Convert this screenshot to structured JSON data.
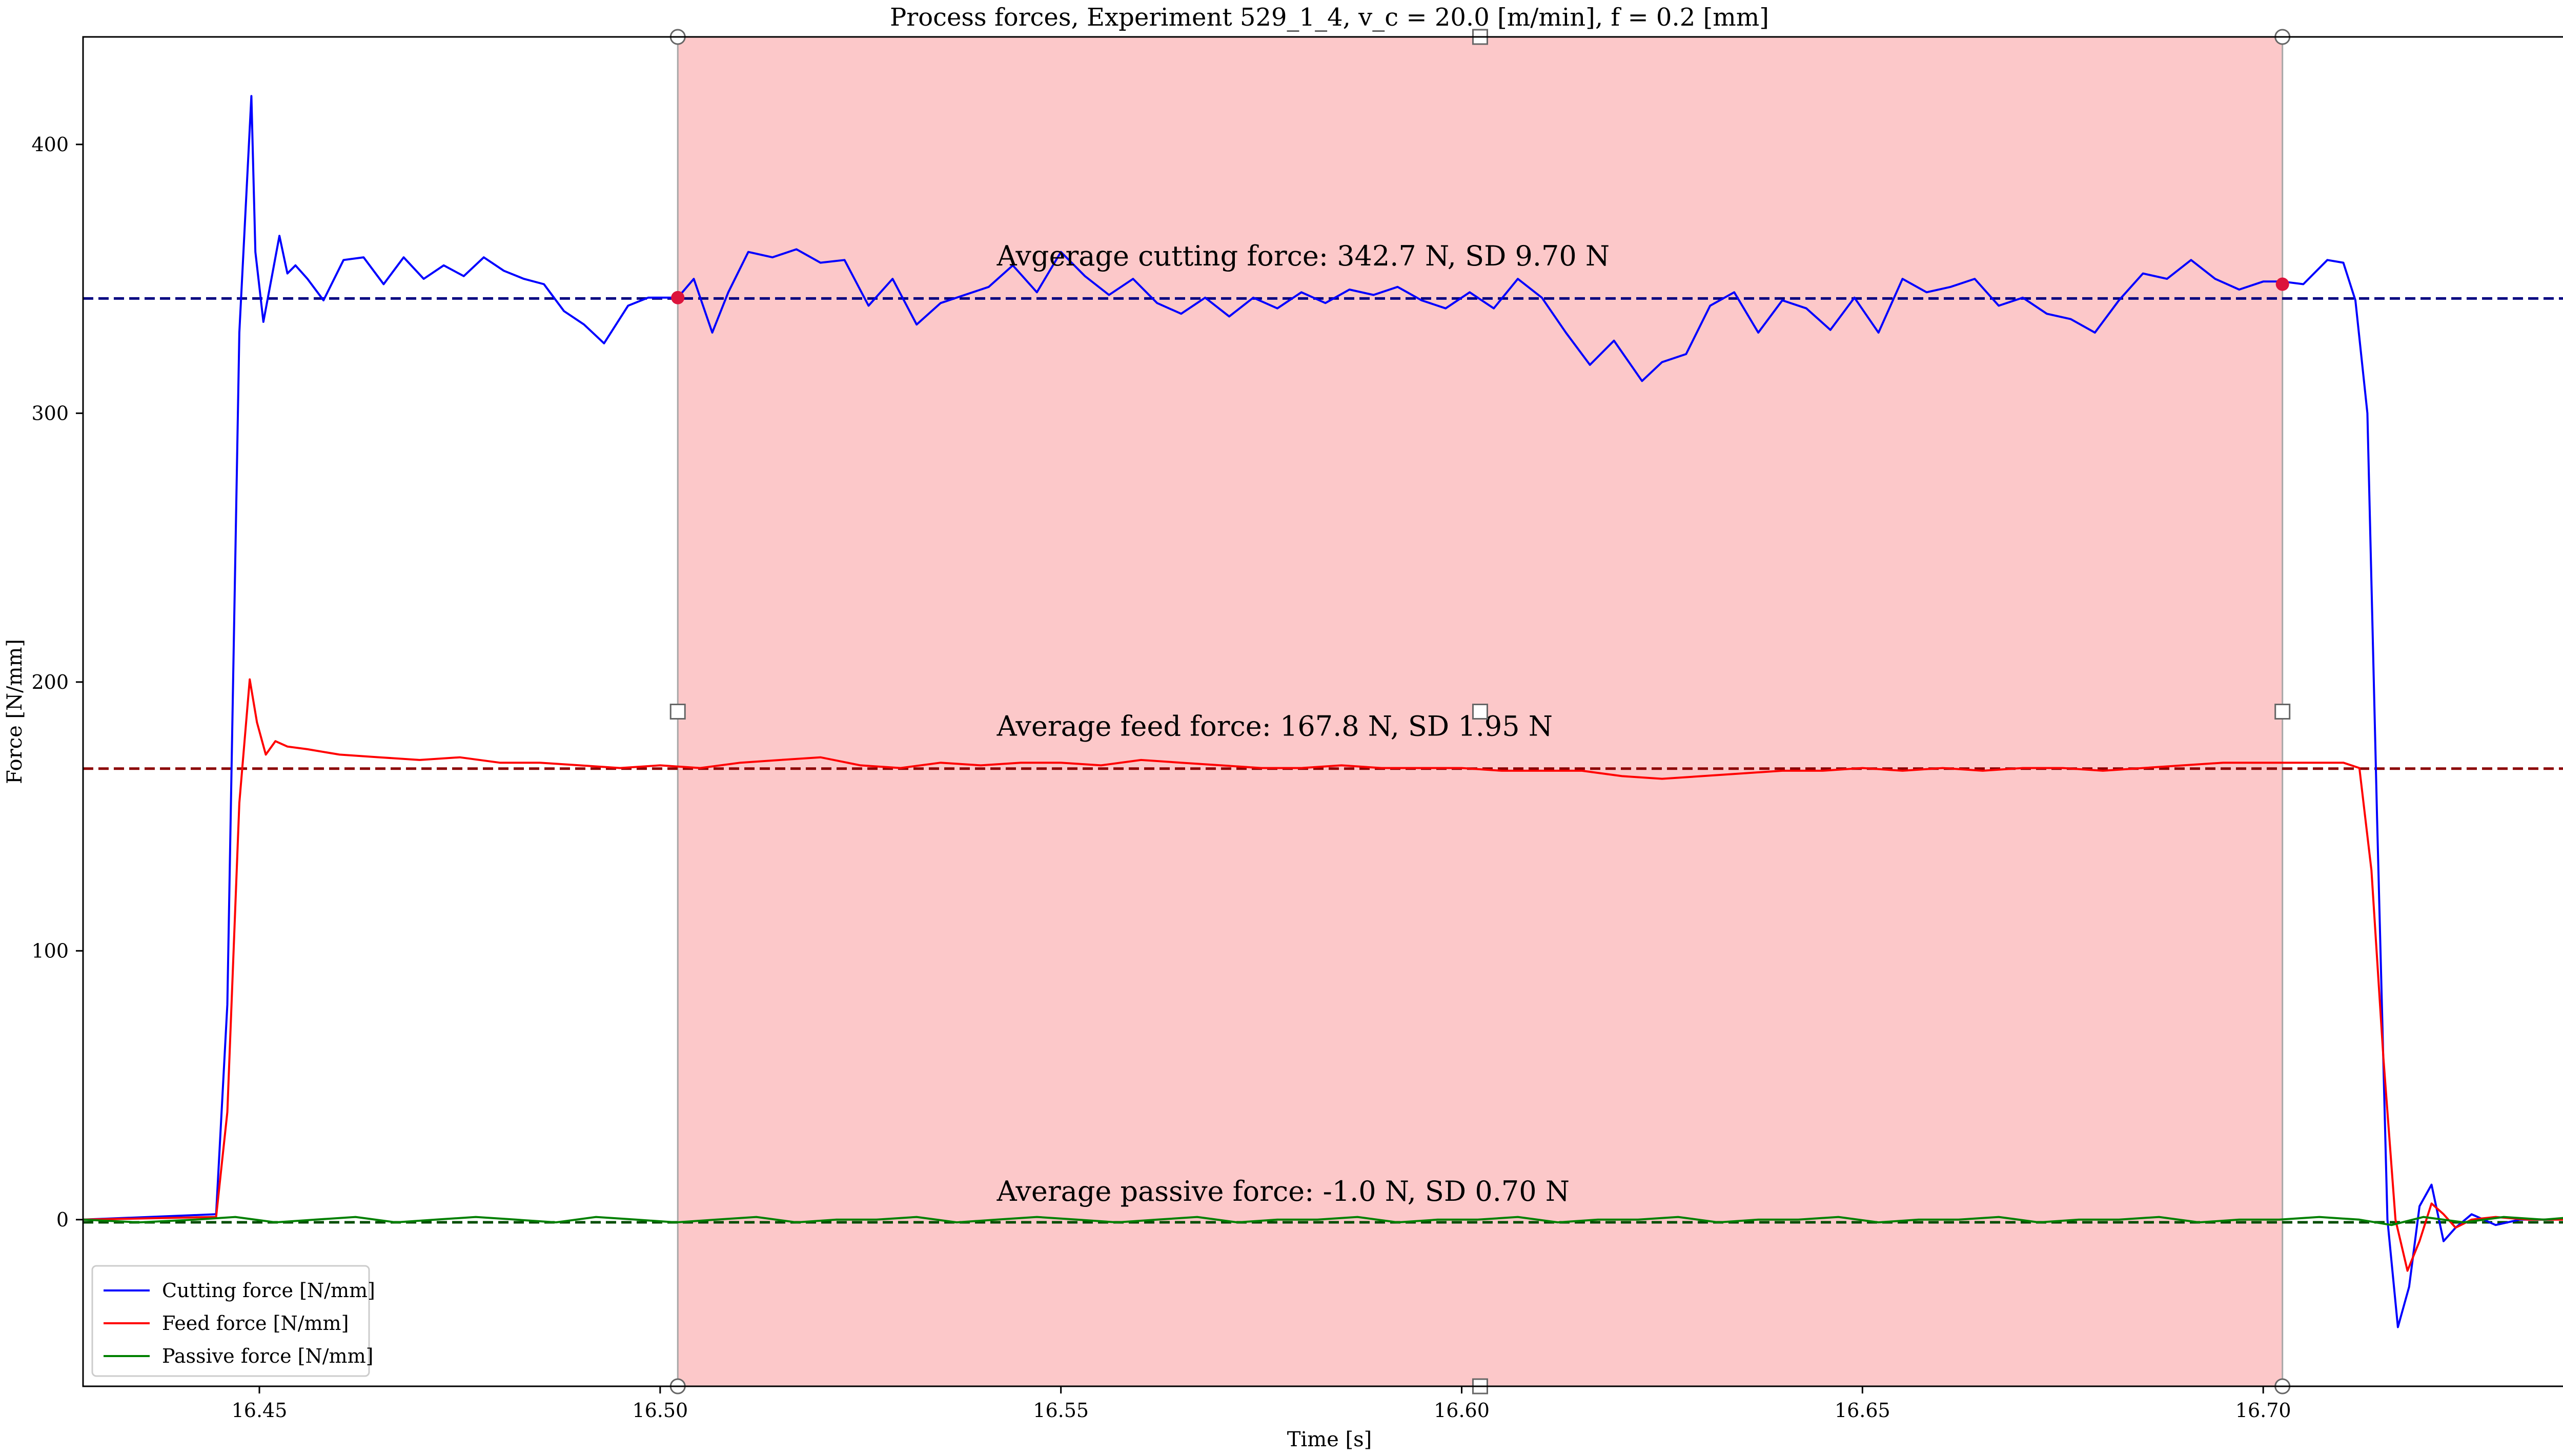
{
  "chart_data": {
    "type": "line",
    "title": "Process forces, Experiment 529_1_4, v_c = 20.0 [m/min], f = 0.2 [mm]",
    "xlabel": "Time [s]",
    "ylabel": "Force [N/mm]",
    "xlim": [
      16.428,
      16.739
    ],
    "ylim": [
      -62,
      440
    ],
    "x_ticks": [
      16.45,
      16.5,
      16.55,
      16.6,
      16.65,
      16.7
    ],
    "x_tick_labels": [
      "16.45",
      "16.50",
      "16.55",
      "16.60",
      "16.65",
      "16.70"
    ],
    "y_ticks": [
      0,
      100,
      200,
      300,
      400
    ],
    "y_tick_labels": [
      "0",
      "100",
      "200",
      "300",
      "400"
    ],
    "grid": false,
    "legend_position": "bottom-left",
    "highlight_span": {
      "x_start": 16.5022,
      "x_end": 16.7024,
      "color": "#fcc8c9"
    },
    "series": [
      {
        "name": "Cutting force [N/mm]",
        "color": "#0000ff",
        "average": 342.7,
        "average_line_color": "#000080",
        "x": [
          16.428,
          16.4446,
          16.446,
          16.4475,
          16.449,
          16.4495,
          16.4505,
          16.4515,
          16.4525,
          16.4535,
          16.4545,
          16.456,
          16.458,
          16.4605,
          16.463,
          16.4655,
          16.468,
          16.4705,
          16.473,
          16.4755,
          16.478,
          16.4805,
          16.483,
          16.4855,
          16.488,
          16.4905,
          16.493,
          16.496,
          16.4985,
          16.5005,
          16.5022,
          16.5042,
          16.5065,
          16.5085,
          16.511,
          16.514,
          16.517,
          16.52,
          16.523,
          16.526,
          16.529,
          16.532,
          16.535,
          16.538,
          16.541,
          16.544,
          16.547,
          16.55,
          16.553,
          16.556,
          16.559,
          16.562,
          16.565,
          16.568,
          16.571,
          16.574,
          16.577,
          16.58,
          16.583,
          16.586,
          16.589,
          16.592,
          16.595,
          16.598,
          16.601,
          16.604,
          16.607,
          16.61,
          16.613,
          16.616,
          16.619,
          16.6225,
          16.625,
          16.628,
          16.631,
          16.634,
          16.637,
          16.64,
          16.643,
          16.646,
          16.649,
          16.652,
          16.655,
          16.658,
          16.661,
          16.664,
          16.667,
          16.67,
          16.673,
          16.676,
          16.679,
          16.682,
          16.685,
          16.688,
          16.691,
          16.694,
          16.697,
          16.7,
          16.7024,
          16.705,
          16.708,
          16.71,
          16.7115,
          16.713,
          16.7142,
          16.7155,
          16.7168,
          16.7182,
          16.7195,
          16.721,
          16.7225,
          16.724,
          16.726,
          16.729,
          16.732,
          16.736,
          16.739
        ],
        "y": [
          0,
          2,
          80,
          330,
          418,
          360,
          334,
          350,
          366,
          352,
          355,
          350,
          342,
          357,
          358,
          348,
          358,
          350,
          355,
          351,
          358,
          353,
          350,
          348,
          338,
          333,
          326,
          340,
          343,
          343,
          343,
          350,
          330,
          345,
          360,
          358,
          361,
          356,
          357,
          340,
          350,
          333,
          341,
          344,
          347,
          355,
          345,
          360,
          351,
          344,
          350,
          341,
          337,
          343,
          336,
          343,
          339,
          345,
          341,
          346,
          344,
          347,
          342,
          339,
          345,
          339,
          350,
          343,
          330,
          318,
          327,
          312,
          319,
          322,
          340,
          345,
          330,
          342,
          339,
          331,
          343,
          330,
          350,
          345,
          347,
          350,
          340,
          343,
          337,
          335,
          330,
          342,
          352,
          350,
          357,
          350,
          346,
          349,
          349,
          348,
          357,
          356,
          342,
          300,
          150,
          0,
          -40,
          -25,
          5,
          13,
          -8,
          -3,
          2,
          -2,
          0,
          0,
          1
        ],
        "label": "Avgerage cutting force: 342.7 N, SD 9.70 N",
        "label_x": 16.542,
        "label_y": 355
      },
      {
        "name": "Feed force [N/mm]",
        "color": "#ff0000",
        "average": 167.8,
        "average_line_color": "#8b0000",
        "x": [
          16.428,
          16.4446,
          16.446,
          16.4475,
          16.4488,
          16.4497,
          16.4508,
          16.452,
          16.4535,
          16.456,
          16.46,
          16.465,
          16.47,
          16.475,
          16.48,
          16.485,
          16.49,
          16.495,
          16.5,
          16.505,
          16.51,
          16.515,
          16.52,
          16.525,
          16.53,
          16.535,
          16.54,
          16.545,
          16.55,
          16.555,
          16.56,
          16.565,
          16.57,
          16.575,
          16.58,
          16.585,
          16.59,
          16.595,
          16.6,
          16.605,
          16.61,
          16.615,
          16.62,
          16.625,
          16.63,
          16.635,
          16.64,
          16.645,
          16.65,
          16.655,
          16.66,
          16.665,
          16.67,
          16.675,
          16.68,
          16.685,
          16.69,
          16.695,
          16.7,
          16.705,
          16.71,
          16.712,
          16.7135,
          16.715,
          16.7165,
          16.718,
          16.7195,
          16.721,
          16.7225,
          16.724,
          16.726,
          16.729,
          16.733,
          16.739
        ],
        "y": [
          0,
          1,
          40,
          155,
          201,
          185,
          173,
          178,
          176,
          175,
          173,
          172,
          171,
          172,
          170,
          170,
          169,
          168,
          169,
          168,
          170,
          171,
          172,
          169,
          168,
          170,
          169,
          170,
          170,
          169,
          171,
          170,
          169,
          168,
          168,
          169,
          168,
          168,
          168,
          167,
          167,
          167,
          165,
          164,
          165,
          166,
          167,
          167,
          168,
          167,
          168,
          167,
          168,
          168,
          167,
          168,
          169,
          170,
          170,
          170,
          170,
          168,
          130,
          60,
          0,
          -19,
          -8,
          6,
          2,
          -3,
          0,
          1,
          0,
          0
        ],
        "label": "Average feed force: 167.8 N, SD 1.95 N",
        "label_x": 16.542,
        "label_y": 180
      },
      {
        "name": "Passive force [N/mm]",
        "color": "#008000",
        "average": -1.0,
        "average_line_color": "#004d00",
        "x": [
          16.428,
          16.435,
          16.442,
          16.447,
          16.452,
          16.457,
          16.462,
          16.467,
          16.472,
          16.477,
          16.482,
          16.487,
          16.492,
          16.497,
          16.502,
          16.507,
          16.512,
          16.517,
          16.522,
          16.527,
          16.532,
          16.537,
          16.542,
          16.547,
          16.552,
          16.557,
          16.562,
          16.567,
          16.572,
          16.577,
          16.582,
          16.587,
          16.592,
          16.597,
          16.602,
          16.607,
          16.612,
          16.617,
          16.622,
          16.627,
          16.632,
          16.637,
          16.642,
          16.647,
          16.652,
          16.657,
          16.662,
          16.667,
          16.672,
          16.677,
          16.682,
          16.687,
          16.692,
          16.697,
          16.702,
          16.707,
          16.712,
          16.716,
          16.72,
          16.725,
          16.73,
          16.735,
          16.739
        ],
        "y": [
          0,
          -1,
          0,
          1,
          -1,
          0,
          1,
          -1,
          0,
          1,
          0,
          -1,
          1,
          0,
          -1,
          0,
          1,
          -1,
          0,
          0,
          1,
          -1,
          0,
          1,
          0,
          -1,
          0,
          1,
          -1,
          0,
          0,
          1,
          -1,
          0,
          0,
          1,
          -1,
          0,
          0,
          1,
          -1,
          0,
          0,
          1,
          -1,
          0,
          0,
          1,
          -1,
          0,
          0,
          1,
          -1,
          0,
          0,
          1,
          0,
          -2,
          1,
          -1,
          1,
          0,
          1
        ],
        "label": "Average passive force: -1.0 N, SD 0.70 N",
        "label_x": 16.542,
        "label_y": 7
      }
    ],
    "markers": [
      {
        "x": 16.5022,
        "y": 343,
        "color": "#dc143c"
      },
      {
        "x": 16.7024,
        "y": 348,
        "color": "#dc143c"
      }
    ],
    "span_handles": {
      "x": [
        16.5022,
        16.6023,
        16.7024
      ],
      "y_mid": 189
    }
  }
}
